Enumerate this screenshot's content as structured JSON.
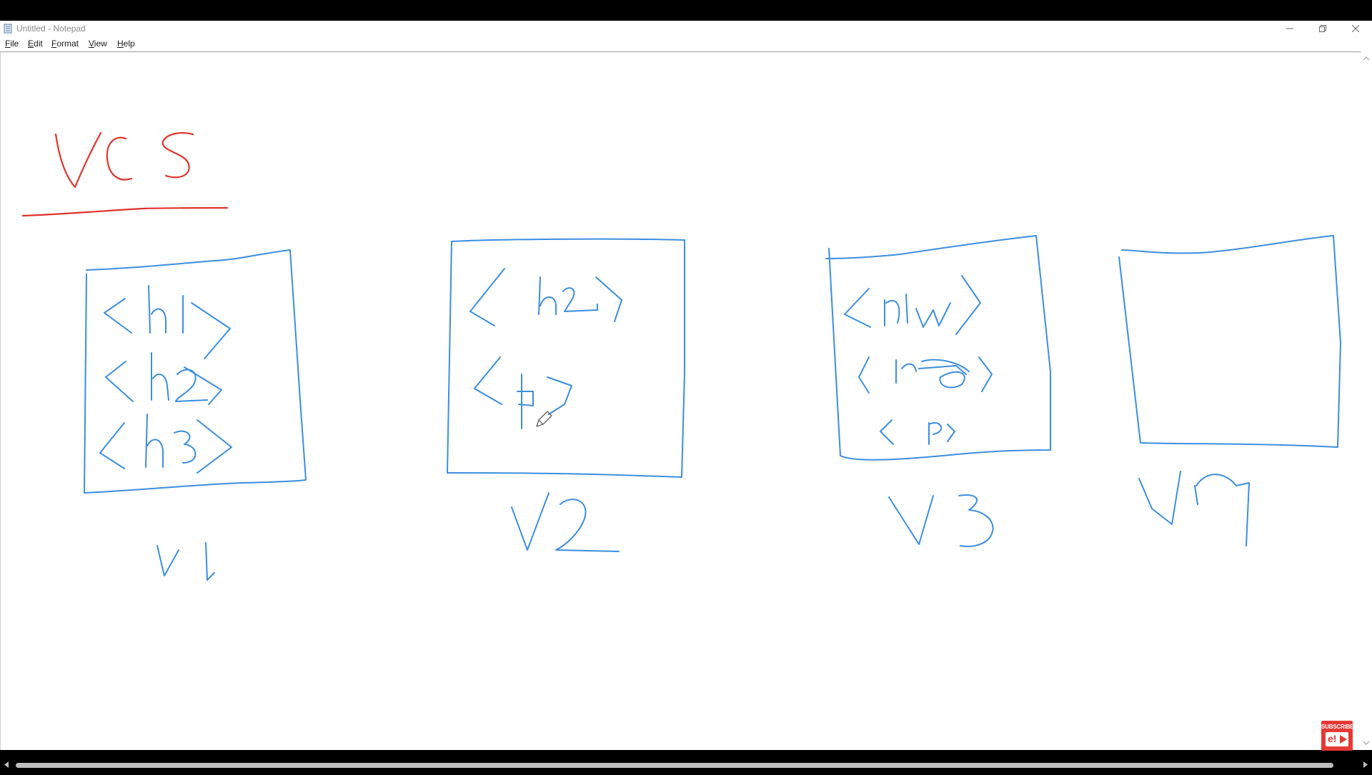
{
  "window": {
    "title": "Untitled - Notepad",
    "icon": "notepad-icon",
    "controls": [
      "minimize-icon",
      "restore-icon",
      "close-icon"
    ]
  },
  "menu": {
    "file": {
      "underline": "F",
      "rest": "ile"
    },
    "edit": {
      "underline": "E",
      "rest": "dit"
    },
    "format": {
      "underline": "F",
      "rest": "ormat"
    },
    "view": {
      "underline": "V",
      "rest": "iew"
    },
    "help": {
      "underline": "H",
      "rest": "elp"
    }
  },
  "colors": {
    "heading_ink": "#e0332c",
    "diagram_ink": "#3b8ee0"
  },
  "subscribe_badge": {
    "label": "SUBSCRIBE",
    "logo": "e!"
  }
}
